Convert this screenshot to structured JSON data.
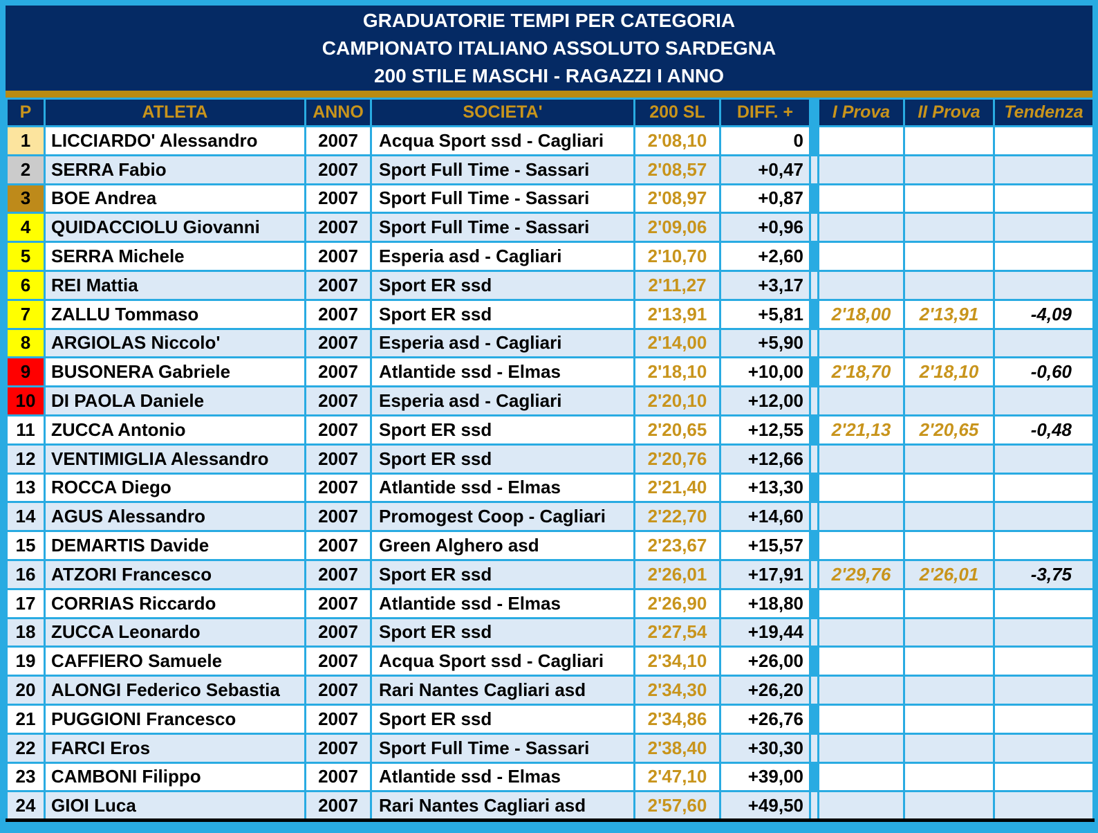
{
  "title": {
    "line1": "GRADUATORIE TEMPI PER CATEGORIA",
    "line2": "CAMPIONATO ITALIANO ASSOLUTO SARDEGNA",
    "line3": "200 STILE MASCHI - RAGAZZI I ANNO"
  },
  "table": {
    "columns": [
      "P",
      "ATLETA",
      "ANNO",
      "SOCIETA'",
      "200 SL",
      "DIFF. +",
      "I Prova",
      "II Prova",
      "Tendenza"
    ],
    "rows": [
      {
        "p": "1",
        "medal": "gold",
        "atleta": "LICCIARDO' Alessandro",
        "anno": "2007",
        "societa": "Acqua Sport ssd - Cagliari",
        "sl200": "2'08,10",
        "diff": "0",
        "prova1": "",
        "prova2": "",
        "tendenza": ""
      },
      {
        "p": "2",
        "medal": "silver",
        "atleta": "SERRA Fabio",
        "anno": "2007",
        "societa": "Sport Full Time - Sassari",
        "sl200": "2'08,57",
        "diff": "+0,47",
        "prova1": "",
        "prova2": "",
        "tendenza": ""
      },
      {
        "p": "3",
        "medal": "bronze",
        "atleta": "BOE Andrea",
        "anno": "2007",
        "societa": "Sport Full Time - Sassari",
        "sl200": "2'08,97",
        "diff": "+0,87",
        "prova1": "",
        "prova2": "",
        "tendenza": ""
      },
      {
        "p": "4",
        "medal": "yellow",
        "atleta": "QUIDACCIOLU Giovanni",
        "anno": "2007",
        "societa": "Sport Full Time - Sassari",
        "sl200": "2'09,06",
        "diff": "+0,96",
        "prova1": "",
        "prova2": "",
        "tendenza": ""
      },
      {
        "p": "5",
        "medal": "yellow",
        "atleta": "SERRA Michele",
        "anno": "2007",
        "societa": "Esperia asd - Cagliari",
        "sl200": "2'10,70",
        "diff": "+2,60",
        "prova1": "",
        "prova2": "",
        "tendenza": ""
      },
      {
        "p": "6",
        "medal": "yellow",
        "atleta": "REI Mattia",
        "anno": "2007",
        "societa": "Sport ER ssd",
        "sl200": "2'11,27",
        "diff": "+3,17",
        "prova1": "",
        "prova2": "",
        "tendenza": ""
      },
      {
        "p": "7",
        "medal": "yellow",
        "atleta": "ZALLU Tommaso",
        "anno": "2007",
        "societa": "Sport ER ssd",
        "sl200": "2'13,91",
        "diff": "+5,81",
        "prova1": "2'18,00",
        "prova2": "2'13,91",
        "tendenza": "-4,09"
      },
      {
        "p": "8",
        "medal": "yellow",
        "atleta": "ARGIOLAS Niccolo'",
        "anno": "2007",
        "societa": "Esperia asd - Cagliari",
        "sl200": "2'14,00",
        "diff": "+5,90",
        "prova1": "",
        "prova2": "",
        "tendenza": ""
      },
      {
        "p": "9",
        "medal": "red",
        "atleta": "BUSONERA Gabriele",
        "anno": "2007",
        "societa": "Atlantide ssd - Elmas",
        "sl200": "2'18,10",
        "diff": "+10,00",
        "prova1": "2'18,70",
        "prova2": "2'18,10",
        "tendenza": "-0,60"
      },
      {
        "p": "10",
        "medal": "red",
        "atleta": "DI PAOLA Daniele",
        "anno": "2007",
        "societa": "Esperia asd - Cagliari",
        "sl200": "2'20,10",
        "diff": "+12,00",
        "prova1": "",
        "prova2": "",
        "tendenza": ""
      },
      {
        "p": "11",
        "medal": "none",
        "atleta": "ZUCCA Antonio",
        "anno": "2007",
        "societa": "Sport ER ssd",
        "sl200": "2'20,65",
        "diff": "+12,55",
        "prova1": "2'21,13",
        "prova2": "2'20,65",
        "tendenza": "-0,48"
      },
      {
        "p": "12",
        "medal": "none",
        "atleta": "VENTIMIGLIA Alessandro",
        "anno": "2007",
        "societa": "Sport ER ssd",
        "sl200": "2'20,76",
        "diff": "+12,66",
        "prova1": "",
        "prova2": "",
        "tendenza": ""
      },
      {
        "p": "13",
        "medal": "none",
        "atleta": "ROCCA Diego",
        "anno": "2007",
        "societa": "Atlantide ssd - Elmas",
        "sl200": "2'21,40",
        "diff": "+13,30",
        "prova1": "",
        "prova2": "",
        "tendenza": ""
      },
      {
        "p": "14",
        "medal": "none",
        "atleta": "AGUS Alessandro",
        "anno": "2007",
        "societa": "Promogest Coop - Cagliari",
        "sl200": "2'22,70",
        "diff": "+14,60",
        "prova1": "",
        "prova2": "",
        "tendenza": ""
      },
      {
        "p": "15",
        "medal": "none",
        "atleta": "DEMARTIS Davide",
        "anno": "2007",
        "societa": "Green Alghero asd",
        "sl200": "2'23,67",
        "diff": "+15,57",
        "prova1": "",
        "prova2": "",
        "tendenza": ""
      },
      {
        "p": "16",
        "medal": "none",
        "atleta": "ATZORI Francesco",
        "anno": "2007",
        "societa": "Sport ER ssd",
        "sl200": "2'26,01",
        "diff": "+17,91",
        "prova1": "2'29,76",
        "prova2": "2'26,01",
        "tendenza": "-3,75"
      },
      {
        "p": "17",
        "medal": "none",
        "atleta": "CORRIAS Riccardo",
        "anno": "2007",
        "societa": "Atlantide ssd - Elmas",
        "sl200": "2'26,90",
        "diff": "+18,80",
        "prova1": "",
        "prova2": "",
        "tendenza": ""
      },
      {
        "p": "18",
        "medal": "none",
        "atleta": "ZUCCA Leonardo",
        "anno": "2007",
        "societa": "Sport ER ssd",
        "sl200": "2'27,54",
        "diff": "+19,44",
        "prova1": "",
        "prova2": "",
        "tendenza": ""
      },
      {
        "p": "19",
        "medal": "none",
        "atleta": "CAFFIERO Samuele",
        "anno": "2007",
        "societa": "Acqua Sport ssd - Cagliari",
        "sl200": "2'34,10",
        "diff": "+26,00",
        "prova1": "",
        "prova2": "",
        "tendenza": ""
      },
      {
        "p": "20",
        "medal": "none",
        "atleta": "ALONGI Federico Sebastia",
        "anno": "2007",
        "societa": "Rari Nantes Cagliari asd",
        "sl200": "2'34,30",
        "diff": "+26,20",
        "prova1": "",
        "prova2": "",
        "tendenza": ""
      },
      {
        "p": "21",
        "medal": "none",
        "atleta": "PUGGIONI Francesco",
        "anno": "2007",
        "societa": "Sport ER ssd",
        "sl200": "2'34,86",
        "diff": "+26,76",
        "prova1": "",
        "prova2": "",
        "tendenza": ""
      },
      {
        "p": "22",
        "medal": "none",
        "atleta": "FARCI Eros",
        "anno": "2007",
        "societa": "Sport Full Time - Sassari",
        "sl200": "2'38,40",
        "diff": "+30,30",
        "prova1": "",
        "prova2": "",
        "tendenza": ""
      },
      {
        "p": "23",
        "medal": "none",
        "atleta": "CAMBONI Filippo",
        "anno": "2007",
        "societa": "Atlantide ssd - Elmas",
        "sl200": "2'47,10",
        "diff": "+39,00",
        "prova1": "",
        "prova2": "",
        "tendenza": ""
      },
      {
        "p": "24",
        "medal": "none",
        "atleta": "GIOI Luca",
        "anno": "2007",
        "societa": "Rari Nantes Cagliari asd",
        "sl200": "2'57,60",
        "diff": "+49,50",
        "prova1": "",
        "prova2": "",
        "tendenza": ""
      }
    ]
  },
  "colors": {
    "frame_cyan": "#29ABE2",
    "navy": "#052A64",
    "gold_text": "#C8941C",
    "gold_bar": "#BA8B12",
    "row_alt_blue": "#DCE9F6",
    "rank1_gold": "#FCE49E",
    "rank2_silver": "#CBCBCB",
    "rank3_bronze": "#BE8A1A",
    "rank_qualified_yellow": "#FFFF00",
    "rank_alert_red": "#FF0000"
  }
}
